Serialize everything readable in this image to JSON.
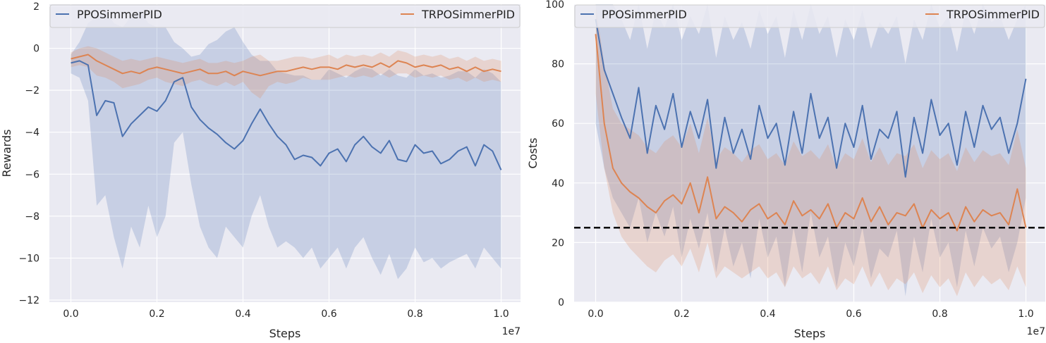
{
  "chart_data": [
    {
      "type": "line",
      "xlabel": "Steps",
      "ylabel": "Rewards",
      "x_offset_label": "1e7",
      "xlim": [
        -0.05,
        1.045
      ],
      "ylim": [
        -12.1,
        2.1
      ],
      "xticks": [
        0.0,
        0.2,
        0.4,
        0.6,
        0.8,
        1.0
      ],
      "xtick_labels": [
        "0.0",
        "0.2",
        "0.4",
        "0.6",
        "0.8",
        "1.0"
      ],
      "yticks": [
        2,
        0,
        -2,
        -4,
        -6,
        -8,
        -10,
        -12
      ],
      "ytick_labels": [
        "2",
        "0",
        "−2",
        "−4",
        "−6",
        "−8",
        "−10",
        "−12"
      ],
      "grid": true,
      "legend": "top",
      "series": [
        {
          "name": "PPOSimmerPID",
          "color": "#4c72b0",
          "x": [
            0.0,
            0.02,
            0.04,
            0.06,
            0.08,
            0.1,
            0.12,
            0.14,
            0.16,
            0.18,
            0.2,
            0.22,
            0.24,
            0.26,
            0.28,
            0.3,
            0.32,
            0.34,
            0.36,
            0.38,
            0.4,
            0.42,
            0.44,
            0.46,
            0.48,
            0.5,
            0.52,
            0.54,
            0.56,
            0.58,
            0.6,
            0.62,
            0.64,
            0.66,
            0.68,
            0.7,
            0.72,
            0.74,
            0.76,
            0.78,
            0.8,
            0.82,
            0.84,
            0.86,
            0.88,
            0.9,
            0.92,
            0.94,
            0.96,
            0.98,
            1.0
          ],
          "y": [
            -0.7,
            -0.6,
            -0.8,
            -3.2,
            -2.5,
            -2.6,
            -4.2,
            -3.6,
            -3.2,
            -2.8,
            -3.0,
            -2.5,
            -1.6,
            -1.4,
            -2.8,
            -3.4,
            -3.8,
            -4.1,
            -4.5,
            -4.8,
            -4.4,
            -3.6,
            -2.9,
            -3.6,
            -4.2,
            -4.6,
            -5.3,
            -5.1,
            -5.2,
            -5.6,
            -5.0,
            -4.8,
            -5.4,
            -4.6,
            -4.2,
            -4.7,
            -5.0,
            -4.4,
            -5.3,
            -5.4,
            -4.6,
            -5.0,
            -4.9,
            -5.5,
            -5.3,
            -4.9,
            -4.7,
            -5.6,
            -4.6,
            -4.9,
            -5.8
          ],
          "band_low": [
            -1.2,
            -1.4,
            -2.5,
            -7.5,
            -7.0,
            -9.0,
            -10.5,
            -8.5,
            -9.5,
            -7.5,
            -9.0,
            -8.0,
            -4.5,
            -4.0,
            -6.5,
            -8.5,
            -9.5,
            -10.0,
            -8.5,
            -9.0,
            -9.5,
            -8.0,
            -7.0,
            -8.5,
            -9.5,
            -9.2,
            -9.5,
            -10.0,
            -9.5,
            -10.5,
            -10.0,
            -9.5,
            -10.5,
            -9.5,
            -9.0,
            -10.0,
            -10.8,
            -9.8,
            -11.0,
            -10.5,
            -9.5,
            -10.2,
            -10.0,
            -10.5,
            -10.2,
            -10.0,
            -9.8,
            -10.5,
            -9.5,
            -10.0,
            -10.5
          ],
          "band_high": [
            -0.3,
            0.3,
            1.2,
            1.5,
            1.8,
            1.2,
            1.0,
            1.5,
            1.8,
            1.2,
            1.0,
            1.0,
            0.3,
            0.0,
            -0.4,
            -0.3,
            0.2,
            0.4,
            0.8,
            1.0,
            0.3,
            -0.3,
            -0.6,
            -0.6,
            -1.1,
            -1.2,
            -1.3,
            -1.3,
            -1.5,
            -1.5,
            -1.0,
            -1.2,
            -1.4,
            -1.1,
            -0.9,
            -1.0,
            -1.3,
            -1.0,
            -1.3,
            -1.4,
            -1.0,
            -1.3,
            -1.2,
            -1.4,
            -1.3,
            -1.1,
            -1.1,
            -1.4,
            -1.0,
            -1.2,
            -1.6
          ]
        },
        {
          "name": "TRPOSimmerPID",
          "color": "#dd8452",
          "x": [
            0.0,
            0.02,
            0.04,
            0.06,
            0.08,
            0.1,
            0.12,
            0.14,
            0.16,
            0.18,
            0.2,
            0.22,
            0.24,
            0.26,
            0.28,
            0.3,
            0.32,
            0.34,
            0.36,
            0.38,
            0.4,
            0.42,
            0.44,
            0.46,
            0.48,
            0.5,
            0.52,
            0.54,
            0.56,
            0.58,
            0.6,
            0.62,
            0.64,
            0.66,
            0.68,
            0.7,
            0.72,
            0.74,
            0.76,
            0.78,
            0.8,
            0.82,
            0.84,
            0.86,
            0.88,
            0.9,
            0.92,
            0.94,
            0.96,
            0.98,
            1.0
          ],
          "y": [
            -0.5,
            -0.4,
            -0.3,
            -0.6,
            -0.8,
            -1.0,
            -1.2,
            -1.1,
            -1.2,
            -1.0,
            -0.9,
            -1.0,
            -1.1,
            -1.2,
            -1.1,
            -1.0,
            -1.2,
            -1.2,
            -1.1,
            -1.3,
            -1.1,
            -1.2,
            -1.3,
            -1.2,
            -1.1,
            -1.1,
            -1.0,
            -0.9,
            -1.0,
            -0.9,
            -0.9,
            -1.0,
            -0.8,
            -0.9,
            -0.8,
            -0.9,
            -0.7,
            -0.9,
            -0.6,
            -0.7,
            -0.9,
            -0.8,
            -0.9,
            -0.8,
            -1.0,
            -0.9,
            -1.1,
            -0.9,
            -1.1,
            -1.0,
            -1.1
          ],
          "band_low": [
            -0.9,
            -0.8,
            -0.9,
            -1.3,
            -1.4,
            -1.6,
            -1.9,
            -1.8,
            -1.7,
            -1.5,
            -1.4,
            -1.6,
            -1.7,
            -1.8,
            -1.6,
            -1.5,
            -1.7,
            -1.8,
            -1.6,
            -1.8,
            -1.6,
            -2.1,
            -2.4,
            -1.8,
            -1.6,
            -1.7,
            -1.6,
            -1.4,
            -1.5,
            -1.5,
            -1.5,
            -1.4,
            -1.3,
            -1.4,
            -1.3,
            -1.4,
            -1.2,
            -1.4,
            -1.2,
            -1.2,
            -1.4,
            -1.3,
            -1.4,
            -1.3,
            -1.5,
            -1.4,
            -1.6,
            -1.4,
            -1.6,
            -1.5,
            -1.6
          ],
          "band_high": [
            -0.2,
            0.0,
            0.1,
            0.0,
            -0.2,
            -0.4,
            -0.6,
            -0.5,
            -0.6,
            -0.5,
            -0.4,
            -0.5,
            -0.6,
            -0.7,
            -0.6,
            -0.5,
            -0.7,
            -0.7,
            -0.6,
            -0.7,
            -0.6,
            -0.4,
            -0.3,
            -0.6,
            -0.6,
            -0.5,
            -0.4,
            -0.4,
            -0.5,
            -0.4,
            -0.3,
            -0.5,
            -0.3,
            -0.4,
            -0.3,
            -0.4,
            -0.2,
            -0.4,
            -0.1,
            -0.2,
            -0.4,
            -0.3,
            -0.4,
            -0.3,
            -0.5,
            -0.4,
            -0.6,
            -0.4,
            -0.6,
            -0.5,
            -0.6
          ]
        }
      ]
    },
    {
      "type": "line",
      "xlabel": "Steps",
      "ylabel": "Costs",
      "x_offset_label": "1e7",
      "xlim": [
        -0.05,
        1.045
      ],
      "ylim": [
        0,
        100
      ],
      "xticks": [
        0.0,
        0.2,
        0.4,
        0.6,
        0.8,
        1.0
      ],
      "xtick_labels": [
        "0.0",
        "0.2",
        "0.4",
        "0.6",
        "0.8",
        "1.0"
      ],
      "yticks": [
        0,
        20,
        40,
        60,
        80,
        100
      ],
      "ytick_labels": [
        "0",
        "20",
        "40",
        "60",
        "80",
        "100"
      ],
      "threshold": 25,
      "threshold_color": "#000000",
      "grid": true,
      "legend": "top",
      "series": [
        {
          "name": "PPOSimmerPID",
          "color": "#4c72b0",
          "x": [
            0.0,
            0.02,
            0.04,
            0.06,
            0.08,
            0.1,
            0.12,
            0.14,
            0.16,
            0.18,
            0.2,
            0.22,
            0.24,
            0.26,
            0.28,
            0.3,
            0.32,
            0.34,
            0.36,
            0.38,
            0.4,
            0.42,
            0.44,
            0.46,
            0.48,
            0.5,
            0.52,
            0.54,
            0.56,
            0.58,
            0.6,
            0.62,
            0.64,
            0.66,
            0.68,
            0.7,
            0.72,
            0.74,
            0.76,
            0.78,
            0.8,
            0.82,
            0.84,
            0.86,
            0.88,
            0.9,
            0.92,
            0.94,
            0.96,
            0.98,
            1.0
          ],
          "y": [
            95,
            78,
            70,
            62,
            55,
            72,
            50,
            66,
            58,
            70,
            52,
            64,
            55,
            68,
            45,
            62,
            50,
            58,
            48,
            66,
            55,
            60,
            46,
            64,
            50,
            70,
            55,
            62,
            45,
            60,
            52,
            66,
            48,
            58,
            55,
            64,
            42,
            62,
            50,
            68,
            56,
            60,
            46,
            64,
            52,
            66,
            58,
            62,
            50,
            60,
            75
          ],
          "band_low": [
            60,
            45,
            35,
            30,
            25,
            35,
            20,
            30,
            22,
            32,
            15,
            28,
            18,
            30,
            10,
            25,
            12,
            20,
            8,
            28,
            15,
            22,
            5,
            25,
            10,
            30,
            15,
            22,
            5,
            20,
            12,
            25,
            8,
            18,
            15,
            24,
            2,
            22,
            10,
            28,
            15,
            20,
            5,
            24,
            12,
            25,
            18,
            22,
            10,
            20,
            35
          ],
          "band_high": [
            100,
            100,
            100,
            95,
            88,
            100,
            85,
            98,
            92,
            100,
            88,
            96,
            90,
            100,
            82,
            96,
            88,
            94,
            85,
            98,
            90,
            96,
            82,
            98,
            88,
            100,
            90,
            96,
            82,
            95,
            88,
            98,
            85,
            94,
            90,
            96,
            80,
            95,
            88,
            100,
            92,
            96,
            84,
            98,
            90,
            100,
            94,
            96,
            88,
            95,
            100
          ]
        },
        {
          "name": "TRPOSimmerPID",
          "color": "#dd8452",
          "x": [
            0.0,
            0.02,
            0.04,
            0.06,
            0.08,
            0.1,
            0.12,
            0.14,
            0.16,
            0.18,
            0.2,
            0.22,
            0.24,
            0.26,
            0.28,
            0.3,
            0.32,
            0.34,
            0.36,
            0.38,
            0.4,
            0.42,
            0.44,
            0.46,
            0.48,
            0.5,
            0.52,
            0.54,
            0.56,
            0.58,
            0.6,
            0.62,
            0.64,
            0.66,
            0.68,
            0.7,
            0.72,
            0.74,
            0.76,
            0.78,
            0.8,
            0.82,
            0.84,
            0.86,
            0.88,
            0.9,
            0.92,
            0.94,
            0.96,
            0.98,
            1.0
          ],
          "y": [
            90,
            60,
            45,
            40,
            37,
            35,
            32,
            30,
            34,
            36,
            33,
            40,
            30,
            42,
            28,
            32,
            30,
            27,
            31,
            33,
            28,
            30,
            26,
            34,
            29,
            31,
            28,
            33,
            25,
            30,
            28,
            35,
            27,
            32,
            26,
            30,
            29,
            33,
            25,
            31,
            28,
            30,
            24,
            32,
            27,
            31,
            29,
            30,
            26,
            38,
            25
          ],
          "band_low": [
            70,
            45,
            30,
            22,
            18,
            15,
            12,
            10,
            14,
            16,
            12,
            18,
            10,
            20,
            8,
            12,
            10,
            8,
            10,
            12,
            8,
            10,
            5,
            12,
            8,
            10,
            6,
            12,
            4,
            8,
            6,
            12,
            5,
            10,
            4,
            8,
            6,
            10,
            3,
            9,
            5,
            8,
            2,
            10,
            5,
            9,
            6,
            8,
            4,
            12,
            5
          ],
          "band_high": [
            100,
            80,
            65,
            60,
            58,
            56,
            52,
            50,
            54,
            56,
            52,
            60,
            50,
            62,
            48,
            52,
            50,
            47,
            51,
            53,
            48,
            50,
            46,
            54,
            49,
            51,
            48,
            53,
            45,
            50,
            48,
            55,
            47,
            52,
            46,
            50,
            49,
            53,
            45,
            51,
            48,
            50,
            44,
            52,
            47,
            51,
            49,
            50,
            46,
            58,
            45
          ]
        }
      ]
    }
  ]
}
